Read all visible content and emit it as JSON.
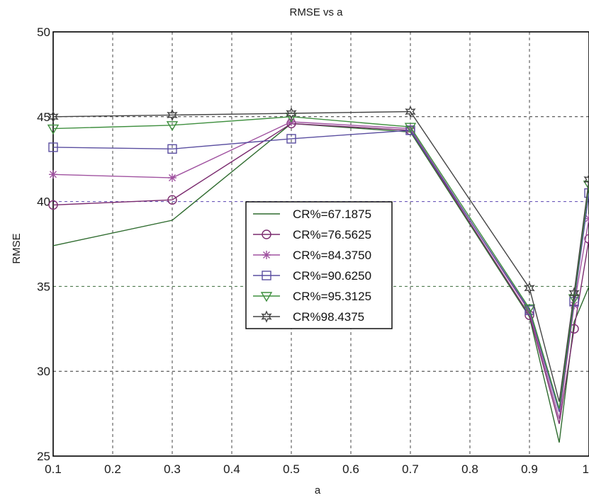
{
  "chart_data": {
    "type": "line",
    "title": "RMSE vs a",
    "xlabel": "a",
    "ylabel": "RMSE",
    "xlim": [
      0.1,
      1.0
    ],
    "ylim": [
      25,
      50
    ],
    "xticks": [
      "0.1",
      "0.2",
      "0.3",
      "0.4",
      "0.5",
      "0.6",
      "0.7",
      "0.8",
      "0.9",
      "1"
    ],
    "yticks": [
      "25",
      "30",
      "35",
      "40",
      "45",
      "50"
    ],
    "grid": true,
    "legend_position": "center-left",
    "x": [
      0.1,
      0.3,
      0.5,
      0.7,
      0.9,
      0.95,
      0.975,
      1.0
    ],
    "series": [
      {
        "name": "CR%=67.1875",
        "marker": "none",
        "color": "#2e6b2e",
        "values": [
          37.4,
          38.9,
          44.6,
          44.1,
          33.2,
          25.8,
          32.9,
          35.0
        ]
      },
      {
        "name": "CR%=76.5625",
        "marker": "circle",
        "color": "#7a2a6e",
        "values": [
          39.8,
          40.1,
          44.6,
          44.2,
          33.3,
          26.9,
          32.5,
          37.8
        ]
      },
      {
        "name": "CR%=84.3750",
        "marker": "star",
        "color": "#a052a0",
        "values": [
          41.6,
          41.4,
          44.7,
          44.3,
          33.5,
          27.2,
          33.9,
          39.0
        ]
      },
      {
        "name": "CR%=90.6250",
        "marker": "square",
        "color": "#5a4ea0",
        "values": [
          43.2,
          43.1,
          43.7,
          44.2,
          33.6,
          27.6,
          34.1,
          40.5
        ]
      },
      {
        "name": "CR%=95.3125",
        "marker": "triangle-down",
        "color": "#3f8f3f",
        "values": [
          44.3,
          44.5,
          45.0,
          44.4,
          33.7,
          27.8,
          34.3,
          41.0
        ]
      },
      {
        "name": "CR%98.4375",
        "marker": "hexagram",
        "color": "#444444",
        "values": [
          45.0,
          45.1,
          45.2,
          45.3,
          34.9,
          28.2,
          34.6,
          41.3
        ]
      }
    ]
  }
}
